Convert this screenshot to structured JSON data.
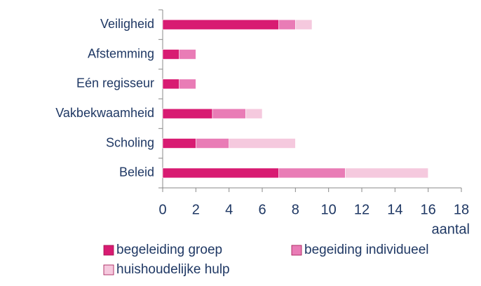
{
  "chart_data": {
    "type": "stacked-bar-horizontal",
    "categories": [
      "Veiligheid",
      "Afstemming",
      "Eén regisseur",
      "Vakbekwaamheid",
      "Scholing",
      "Beleid"
    ],
    "series": [
      {
        "name": "begeleiding groep",
        "color": "#d81b72",
        "values": [
          7,
          1,
          1,
          3,
          2,
          7
        ]
      },
      {
        "name": "begeiding individueel",
        "color": "#e97cb6",
        "values": [
          1,
          1,
          1,
          2,
          2,
          4
        ]
      },
      {
        "name": "huishoudelijke hulp",
        "color": "#f5c9de",
        "values": [
          1,
          0,
          0,
          1,
          4,
          5
        ]
      }
    ],
    "xlabel": "aantal",
    "xlim": [
      0,
      18
    ],
    "xticks": [
      0,
      2,
      4,
      6,
      8,
      10,
      12,
      14,
      16,
      18
    ],
    "legend": "bottom"
  }
}
